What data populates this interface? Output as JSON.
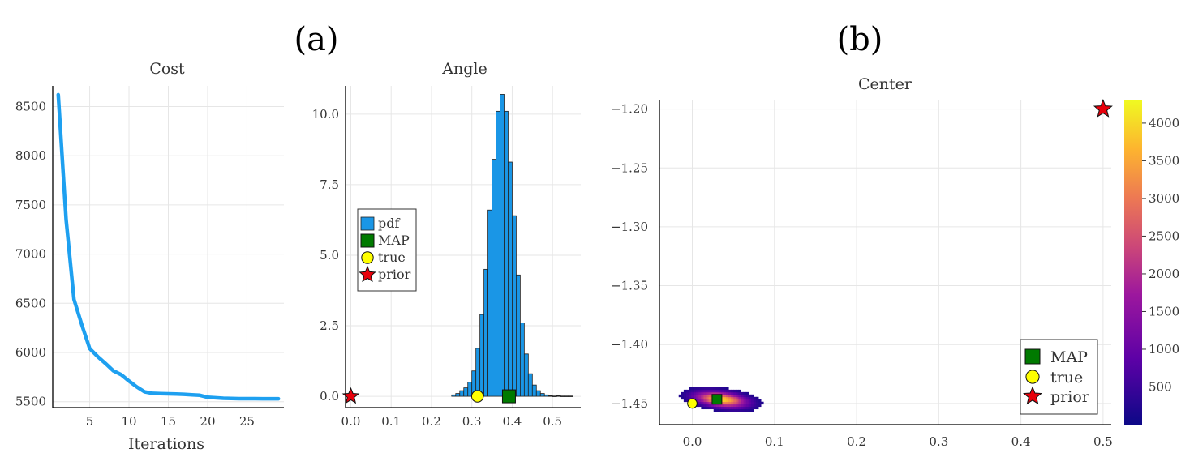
{
  "panel_labels": [
    "(a)",
    "(b)"
  ],
  "chart_data": [
    {
      "type": "line",
      "title": "Cost",
      "xlabel": "Iterations",
      "ylabel": "",
      "xlim": [
        0.3,
        29.7
      ],
      "ylim": [
        5440,
        8710
      ],
      "xticks": [
        5,
        10,
        15,
        20,
        25
      ],
      "yticks": [
        5500,
        6000,
        6500,
        7000,
        7500,
        8000,
        8500
      ],
      "color": "#1ea0f0",
      "x": [
        1,
        2,
        3,
        4,
        5,
        6,
        7,
        8,
        9,
        10,
        11,
        12,
        13,
        14,
        15,
        16,
        17,
        18,
        19,
        20,
        21,
        22,
        23,
        24,
        25,
        26,
        27,
        28,
        29
      ],
      "y": [
        8620,
        7350,
        6540,
        6280,
        6040,
        5960,
        5890,
        5815,
        5775,
        5710,
        5650,
        5600,
        5585,
        5582,
        5580,
        5578,
        5575,
        5570,
        5565,
        5545,
        5540,
        5535,
        5532,
        5531,
        5531,
        5531,
        5530,
        5530,
        5530
      ],
      "grid": true,
      "legend": "none"
    },
    {
      "type": "bar",
      "title": "Angle",
      "xlabel": "",
      "ylabel": "",
      "xlim": [
        -0.013,
        0.57
      ],
      "ylim": [
        -0.4,
        11.0
      ],
      "xticks": [
        0.0,
        0.1,
        0.2,
        0.3,
        0.4,
        0.5
      ],
      "xtick_labels": [
        "0.0",
        "0.1",
        "0.2",
        "0.3",
        "0.4",
        "0.5"
      ],
      "yticks": [
        0.0,
        2.5,
        5.0,
        7.5,
        10.0
      ],
      "ytick_labels": [
        "0.0",
        "2.5",
        "5.0",
        "7.5",
        "10.0"
      ],
      "bin_start": 0.25,
      "bin_width": 0.01,
      "values": [
        0.05,
        0.1,
        0.2,
        0.3,
        0.5,
        0.9,
        1.7,
        2.9,
        4.5,
        6.6,
        8.4,
        10.1,
        10.7,
        10.1,
        8.3,
        6.4,
        4.3,
        2.6,
        1.5,
        0.8,
        0.4,
        0.2,
        0.1,
        0.05,
        0.02,
        0.01,
        0.02,
        0.01,
        0.01,
        0.01
      ],
      "bar_color": "#1a96e6",
      "markers": {
        "MAP": {
          "x": 0.392,
          "y": 0.0,
          "color": "#007a00"
        },
        "true": {
          "x": 0.314,
          "y": 0.0,
          "color": "#ffff00"
        },
        "prior": {
          "x": 0.0,
          "y": 0.0,
          "color": "#e8000b"
        }
      },
      "legend_entries": [
        "pdf",
        "MAP",
        "true",
        "prior"
      ],
      "legend": "left",
      "grid": true
    },
    {
      "type": "heatmap",
      "title": "Center",
      "xlabel": "",
      "ylabel": "",
      "xlim": [
        -0.04,
        0.51
      ],
      "ylim": [
        -1.468,
        -1.192
      ],
      "xticks": [
        0.0,
        0.1,
        0.2,
        0.3,
        0.4,
        0.5
      ],
      "xtick_labels": [
        "0.0",
        "0.1",
        "0.2",
        "0.3",
        "0.4",
        "0.5"
      ],
      "yticks": [
        -1.2,
        -1.25,
        -1.3,
        -1.35,
        -1.4,
        -1.45
      ],
      "ytick_labels": [
        "−1.20",
        "−1.25",
        "−1.30",
        "−1.35",
        "−1.40",
        "−1.45"
      ],
      "density_center": {
        "x": 0.035,
        "y": -1.4465
      },
      "density_spread": {
        "x": 0.026,
        "y": 0.0055
      },
      "density_peak": 4300,
      "colorbar_ticks": [
        500,
        1000,
        1500,
        2000,
        2500,
        3000,
        3500,
        4000
      ],
      "colorbar_range": [
        0,
        4300
      ],
      "markers": {
        "MAP": {
          "x": 0.03,
          "y": -1.4465,
          "color": "#007a00"
        },
        "true": {
          "x": 0.0,
          "y": -1.45,
          "color": "#ffff00"
        },
        "prior": {
          "x": 0.5,
          "y": -1.2,
          "color": "#e8000b"
        }
      },
      "legend_entries": [
        "MAP",
        "true",
        "prior"
      ],
      "legend": "bottom-right",
      "grid": true
    }
  ]
}
